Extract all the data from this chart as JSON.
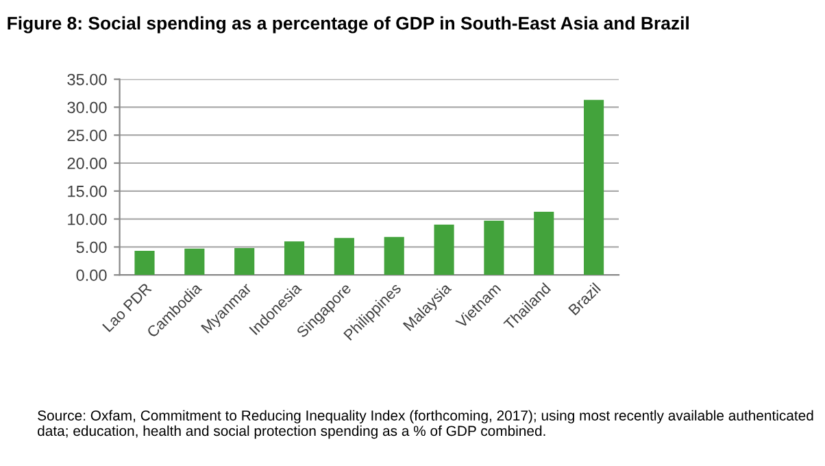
{
  "chart_data": {
    "type": "bar",
    "title": "Figure 8: Social spending as a percentage of GDP in South-East Asia and Brazil",
    "categories": [
      "Lao PDR",
      "Cambodia",
      "Myanmar",
      "Indonesia",
      "Singapore",
      "Philippines",
      "Malaysia",
      "Vietnam",
      "Thailand",
      "Brazil"
    ],
    "values": [
      4.3,
      4.7,
      4.8,
      6.0,
      6.6,
      6.8,
      9.0,
      9.7,
      11.3,
      31.3
    ],
    "color": "#43a33c",
    "ylim": [
      0,
      35
    ],
    "yticks": [
      {
        "value": 0,
        "label": "0.00"
      },
      {
        "value": 5,
        "label": "5.00"
      },
      {
        "value": 10,
        "label": "10.00"
      },
      {
        "value": 15,
        "label": "15.00"
      },
      {
        "value": 20,
        "label": "20.00"
      },
      {
        "value": 25,
        "label": "25.00"
      },
      {
        "value": 30,
        "label": "30.00"
      },
      {
        "value": 35,
        "label": "35.00"
      }
    ],
    "grid": "y",
    "annotations": [
      "Source: Oxfam, Commitment to Reducing Inequality Index (forthcoming, 2017); using most recently available authenticated data; education, health and social protection spending as a % of GDP combined."
    ]
  }
}
